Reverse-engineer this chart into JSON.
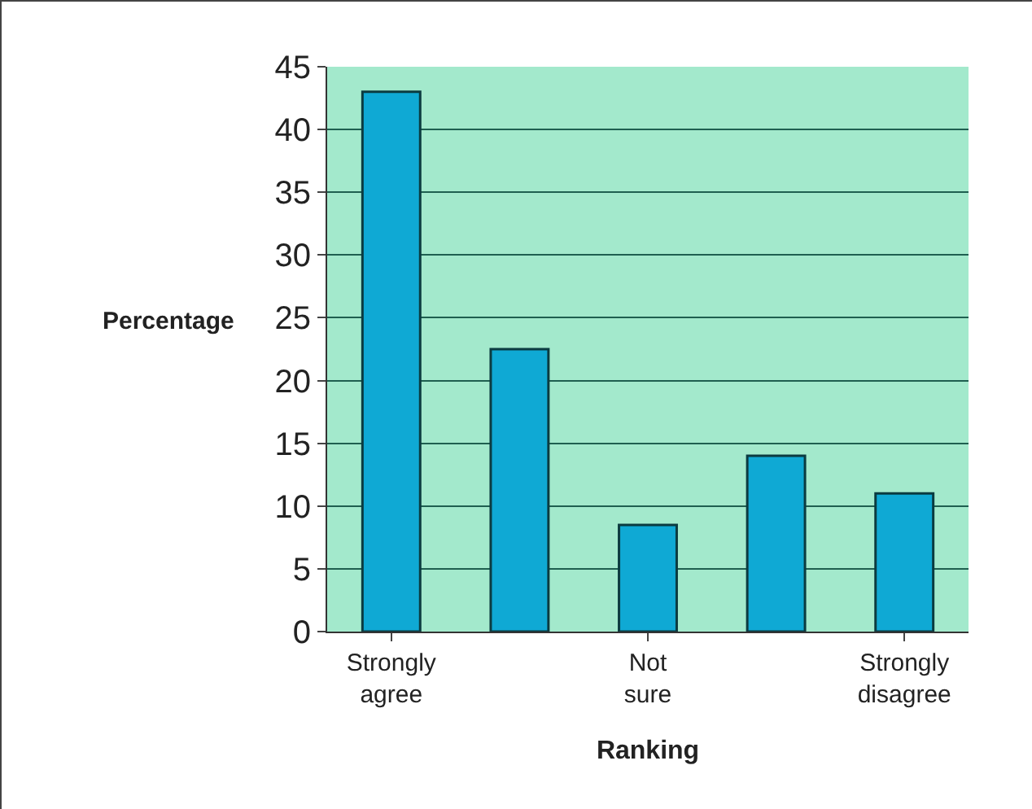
{
  "chart_data": {
    "type": "bar",
    "xlabel": "Ranking",
    "ylabel": "Percentage",
    "categories": [
      "Strongly agree",
      null,
      "Not sure",
      null,
      "Strongly disagree"
    ],
    "values": [
      43,
      22.5,
      8.5,
      14,
      11
    ],
    "color": "#0fa9d4",
    "ylim": [
      0,
      45
    ],
    "yticks": [
      0,
      5,
      10,
      15,
      20,
      25,
      30,
      35,
      40,
      45
    ],
    "grid": "y"
  }
}
